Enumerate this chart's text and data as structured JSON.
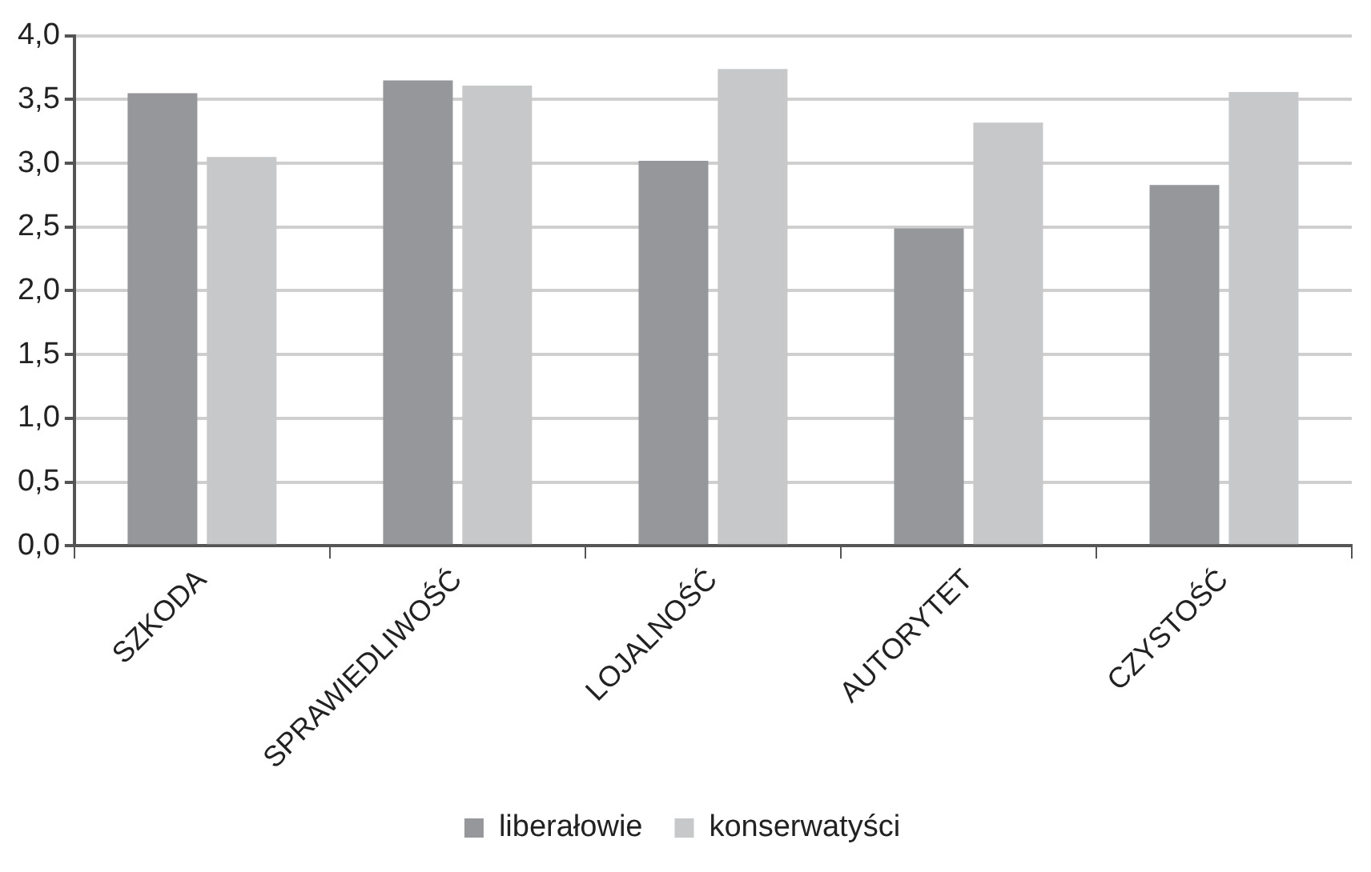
{
  "chart_data": {
    "type": "bar",
    "categories": [
      "SZKODA",
      "SPRAWIEDLIWOŚĆ",
      "LOJALNOŚĆ",
      "AUTORYTET",
      "CZYSTOŚĆ"
    ],
    "series": [
      {
        "name": "liberałowie",
        "color": "#96979b",
        "values": [
          3.55,
          3.65,
          3.02,
          2.49,
          2.83
        ]
      },
      {
        "name": "konserwatyści",
        "color": "#c7c8ca",
        "values": [
          3.05,
          3.61,
          3.74,
          3.32,
          3.56
        ]
      }
    ],
    "ylim": [
      0,
      4
    ],
    "yticks": [
      {
        "value": 0,
        "label": "0,0"
      },
      {
        "value": 0.5,
        "label": "0,5"
      },
      {
        "value": 1,
        "label": "1,0"
      },
      {
        "value": 1.5,
        "label": "1,5"
      },
      {
        "value": 2,
        "label": "2,0"
      },
      {
        "value": 2.5,
        "label": "2,5"
      },
      {
        "value": 3,
        "label": "3,0"
      },
      {
        "value": 3.5,
        "label": "3,5"
      },
      {
        "value": 4,
        "label": "4,0"
      }
    ],
    "grid": "y",
    "legend": "bottom"
  }
}
